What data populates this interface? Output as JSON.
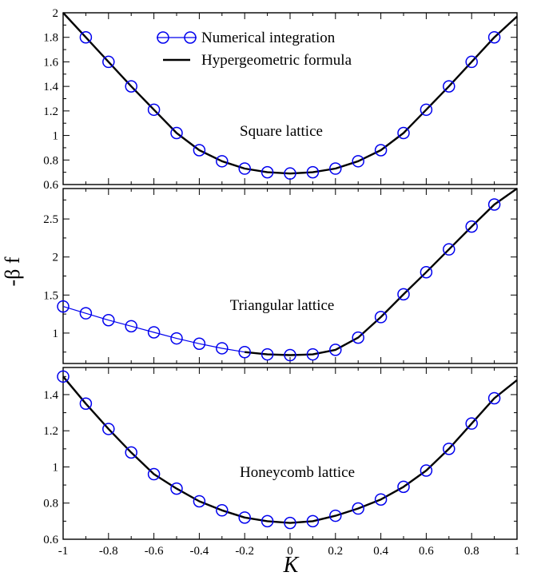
{
  "legend": {
    "numerical": "Numerical integration",
    "formula": "Hypergeometric formula"
  },
  "ylabel": "-β f",
  "xlabel": "K",
  "colors": {
    "numerical": "#0000ee",
    "formula": "#000000"
  },
  "chart_data": [
    {
      "type": "line",
      "panel_label": "Square lattice",
      "xlim": [
        -1,
        1
      ],
      "ylim": [
        0.6,
        2
      ],
      "yticks": [
        "0.6",
        "0.8",
        "1",
        "1.2",
        "1.4",
        "1.6",
        "1.8",
        "2"
      ],
      "series": [
        {
          "name": "Numerical integration",
          "x": [
            -0.9,
            -0.8,
            -0.7,
            -0.6,
            -0.5,
            -0.4,
            -0.3,
            -0.2,
            -0.1,
            0.0,
            0.1,
            0.2,
            0.3,
            0.4,
            0.5,
            0.6,
            0.7,
            0.8,
            0.9
          ],
          "y": [
            1.8,
            1.6,
            1.4,
            1.21,
            1.02,
            0.88,
            0.79,
            0.73,
            0.7,
            0.69,
            0.7,
            0.73,
            0.79,
            0.88,
            1.02,
            1.21,
            1.4,
            1.6,
            1.8
          ]
        },
        {
          "name": "Hypergeometric formula",
          "x": [
            -1.0,
            -0.9,
            -0.8,
            -0.7,
            -0.6,
            -0.5,
            -0.4,
            -0.3,
            -0.2,
            -0.1,
            0.0,
            0.1,
            0.2,
            0.3,
            0.4,
            0.5,
            0.6,
            0.7,
            0.8,
            0.9,
            1.0
          ],
          "y": [
            2.0,
            1.8,
            1.6,
            1.4,
            1.21,
            1.02,
            0.88,
            0.79,
            0.73,
            0.7,
            0.69,
            0.7,
            0.73,
            0.79,
            0.88,
            1.02,
            1.21,
            1.4,
            1.6,
            1.8,
            1.97
          ]
        }
      ]
    },
    {
      "type": "line",
      "panel_label": "Triangular lattice",
      "xlim": [
        -1,
        1
      ],
      "ylim": [
        0.6,
        2.9
      ],
      "yticks": [
        "1",
        "1.5",
        "2",
        "2.5"
      ],
      "ytick_values": [
        1,
        1.5,
        2,
        2.5
      ],
      "series": [
        {
          "name": "Numerical integration",
          "x": [
            -1.0,
            -0.9,
            -0.8,
            -0.7,
            -0.6,
            -0.5,
            -0.4,
            -0.3,
            -0.2,
            -0.1,
            0.0,
            0.1,
            0.2,
            0.3,
            0.4,
            0.5,
            0.6,
            0.7,
            0.8,
            0.9
          ],
          "y": [
            1.35,
            1.26,
            1.17,
            1.09,
            1.01,
            0.93,
            0.86,
            0.8,
            0.75,
            0.72,
            0.71,
            0.72,
            0.78,
            0.94,
            1.21,
            1.51,
            1.8,
            2.1,
            2.4,
            2.69
          ]
        },
        {
          "name": "Hypergeometric formula",
          "x": [
            -0.2,
            -0.1,
            0.0,
            0.1,
            0.2,
            0.3,
            0.4,
            0.5,
            0.6,
            0.7,
            0.8,
            0.9,
            1.0
          ],
          "y": [
            0.75,
            0.72,
            0.71,
            0.72,
            0.78,
            0.94,
            1.21,
            1.51,
            1.8,
            2.1,
            2.4,
            2.69,
            2.9
          ]
        }
      ]
    },
    {
      "type": "line",
      "panel_label": "Honeycomb lattice",
      "xlim": [
        -1,
        1
      ],
      "ylim": [
        0.6,
        1.55
      ],
      "yticks": [
        "0.6",
        "0.8",
        "1",
        "1.2",
        "1.4"
      ],
      "ytick_values": [
        0.6,
        0.8,
        1.0,
        1.2,
        1.4
      ],
      "xticks": [
        "-1",
        "-0.8",
        "-0.6",
        "-0.4",
        "-0.2",
        "0",
        "0.2",
        "0.4",
        "0.6",
        "0.8",
        "1"
      ],
      "series": [
        {
          "name": "Numerical integration",
          "x": [
            -1.0,
            -0.9,
            -0.8,
            -0.7,
            -0.6,
            -0.5,
            -0.4,
            -0.3,
            -0.2,
            -0.1,
            0.0,
            0.1,
            0.2,
            0.3,
            0.4,
            0.5,
            0.6,
            0.7,
            0.8,
            0.9
          ],
          "y": [
            1.5,
            1.35,
            1.21,
            1.08,
            0.96,
            0.88,
            0.81,
            0.76,
            0.72,
            0.7,
            0.69,
            0.7,
            0.73,
            0.77,
            0.82,
            0.89,
            0.98,
            1.1,
            1.24,
            1.38
          ]
        },
        {
          "name": "Hypergeometric formula",
          "x": [
            -1.0,
            -0.9,
            -0.8,
            -0.7,
            -0.6,
            -0.5,
            -0.4,
            -0.3,
            -0.2,
            -0.1,
            0.0,
            0.1,
            0.2,
            0.3,
            0.4,
            0.5,
            0.6,
            0.7,
            0.8,
            0.9,
            1.0
          ],
          "y": [
            1.5,
            1.35,
            1.21,
            1.08,
            0.96,
            0.88,
            0.81,
            0.76,
            0.72,
            0.7,
            0.69,
            0.7,
            0.73,
            0.77,
            0.82,
            0.89,
            0.98,
            1.1,
            1.24,
            1.38,
            1.48
          ]
        }
      ]
    }
  ]
}
